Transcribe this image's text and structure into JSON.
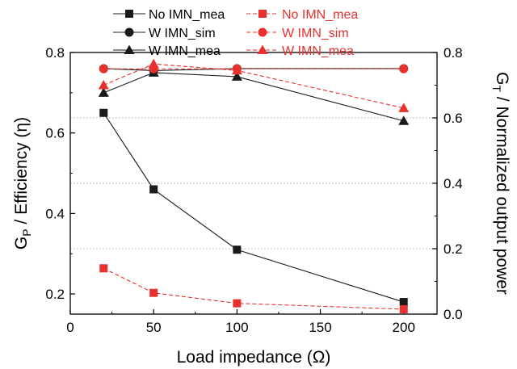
{
  "chart_data": {
    "type": "line",
    "xlabel": "Load impedance (Ω)",
    "ylabel_left": {
      "main": "G",
      "sub": "P",
      "rest": " / Efficiency (η)"
    },
    "ylabel_right": {
      "main": "G",
      "sub": "T",
      "rest": " / Normalized output power"
    },
    "xlim": [
      0,
      220
    ],
    "ylim_left": [
      0.15,
      0.8
    ],
    "ylim_right": [
      0.0,
      0.8
    ],
    "x_ticks": [
      "0",
      "50",
      "100",
      "150",
      "200"
    ],
    "y_ticks_left": [
      "0.2",
      "0.4",
      "0.6",
      "0.8"
    ],
    "y_ticks_right": [
      "0.0",
      "0.2",
      "0.4",
      "0.6",
      "0.8"
    ],
    "grid": "horizontal dotted",
    "legend_position": "top",
    "series": [
      {
        "name": "No IMN_mea",
        "axis": "left",
        "marker": "square",
        "color": "#1a1a1a",
        "dashed": false,
        "points": [
          [
            20,
            0.65
          ],
          [
            50,
            0.46
          ],
          [
            100,
            0.31
          ],
          [
            200,
            0.18
          ]
        ]
      },
      {
        "name": "W IMN_sim",
        "axis": "left",
        "marker": "circle",
        "color": "#1a1a1a",
        "dashed": false,
        "points": [
          [
            20,
            0.76
          ],
          [
            50,
            0.755
          ],
          [
            100,
            0.76
          ],
          [
            200,
            0.76
          ]
        ]
      },
      {
        "name": "W IMN_mea",
        "axis": "left",
        "marker": "triangle",
        "color": "#1a1a1a",
        "dashed": false,
        "points": [
          [
            20,
            0.7
          ],
          [
            50,
            0.75
          ],
          [
            100,
            0.74
          ],
          [
            200,
            0.63
          ]
        ]
      },
      {
        "name": "No IMN_mea",
        "axis": "right",
        "marker": "square",
        "color": "#e8312f",
        "dashed": true,
        "points": [
          [
            20,
            0.14
          ],
          [
            50,
            0.065
          ],
          [
            100,
            0.033
          ],
          [
            200,
            0.015
          ]
        ]
      },
      {
        "name": "W IMN_sim",
        "axis": "right",
        "marker": "circle",
        "color": "#e8312f",
        "dashed": true,
        "points": [
          [
            20,
            0.75
          ],
          [
            50,
            0.75
          ],
          [
            100,
            0.75
          ],
          [
            200,
            0.75
          ]
        ]
      },
      {
        "name": "W IMN_mea",
        "axis": "right",
        "marker": "triangle",
        "color": "#e8312f",
        "dashed": true,
        "points": [
          [
            20,
            0.7
          ],
          [
            50,
            0.765
          ],
          [
            100,
            0.745
          ],
          [
            200,
            0.63
          ]
        ]
      }
    ]
  }
}
